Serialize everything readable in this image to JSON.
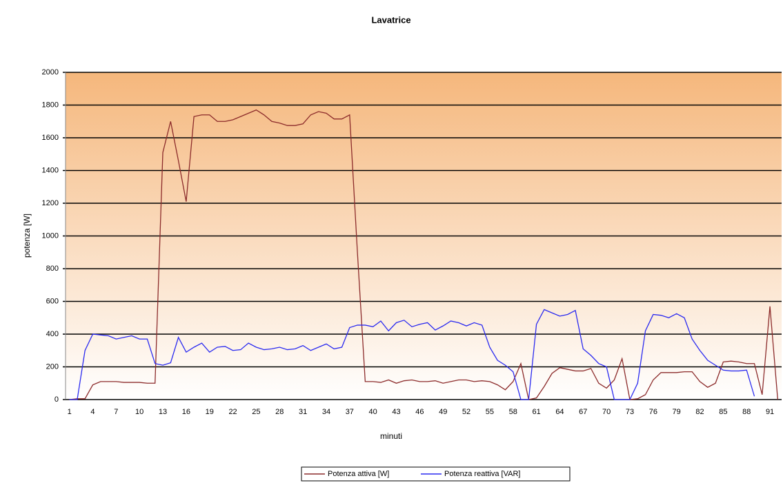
{
  "chart_data": {
    "type": "line",
    "title": "Lavatrice",
    "x_label": "minuti",
    "y_label": "potenza [W]",
    "categories": [
      "1",
      null,
      null,
      "4",
      null,
      null,
      "7",
      null,
      null,
      "10",
      null,
      null,
      "13",
      null,
      null,
      "16",
      null,
      null,
      "19",
      null,
      null,
      "22",
      null,
      null,
      "25",
      null,
      null,
      "28",
      null,
      null,
      "31",
      null,
      null,
      "34",
      null,
      null,
      "37",
      null,
      null,
      "40",
      null,
      null,
      "43",
      null,
      null,
      "46",
      null,
      null,
      "49",
      null,
      null,
      "52",
      null,
      null,
      "55",
      null,
      null,
      "58",
      null,
      null,
      "61",
      null,
      null,
      "64",
      null,
      null,
      "67",
      null,
      null,
      "70",
      null,
      null,
      "73",
      null,
      null,
      "76",
      null,
      null,
      "79",
      null,
      null,
      "82",
      null,
      null,
      "85",
      null,
      null,
      "88",
      null,
      null,
      "91",
      null
    ],
    "series": [
      {
        "name": "Potenza attiva [W]",
        "color": "#8b2a2a",
        "values": [
          0,
          5,
          5,
          90,
          110,
          110,
          110,
          105,
          105,
          105,
          100,
          100,
          1510,
          1700,
          1460,
          1210,
          1730,
          1740,
          1740,
          1700,
          1700,
          1710,
          1730,
          1750,
          1770,
          1740,
          1700,
          1690,
          1675,
          1675,
          1685,
          1740,
          1760,
          1750,
          1715,
          1715,
          1740,
          900,
          110,
          110,
          105,
          120,
          100,
          115,
          120,
          110,
          110,
          115,
          100,
          110,
          120,
          120,
          110,
          115,
          110,
          90,
          60,
          110,
          220,
          0,
          10,
          80,
          160,
          195,
          185,
          175,
          175,
          190,
          100,
          70,
          120,
          250,
          0,
          5,
          30,
          120,
          165,
          165,
          165,
          170,
          170,
          110,
          75,
          100,
          230,
          235,
          230,
          220,
          220,
          30,
          570,
          0
        ]
      },
      {
        "name": "Potenza reattiva [VAR]",
        "color": "#2a2af0",
        "values": [
          0,
          0,
          300,
          400,
          395,
          390,
          370,
          380,
          390,
          370,
          370,
          220,
          210,
          225,
          380,
          290,
          320,
          345,
          290,
          320,
          325,
          300,
          305,
          345,
          320,
          305,
          310,
          320,
          305,
          310,
          330,
          300,
          320,
          340,
          310,
          320,
          440,
          455,
          455,
          445,
          480,
          420,
          470,
          485,
          445,
          460,
          470,
          425,
          450,
          480,
          470,
          450,
          470,
          455,
          320,
          240,
          210,
          170,
          0,
          0,
          460,
          550,
          530,
          510,
          520,
          545,
          310,
          270,
          220,
          200,
          0,
          0,
          0,
          100,
          420,
          520,
          515,
          500,
          525,
          500,
          370,
          300,
          240,
          210,
          180,
          175,
          175,
          180,
          20,
          null,
          null,
          null
        ]
      }
    ],
    "ylim": [
      0,
      2000
    ],
    "yticks": [
      0,
      200,
      400,
      600,
      800,
      1000,
      1200,
      1400,
      1600,
      1800,
      2000
    ],
    "grid": true,
    "legend": "bottom"
  }
}
